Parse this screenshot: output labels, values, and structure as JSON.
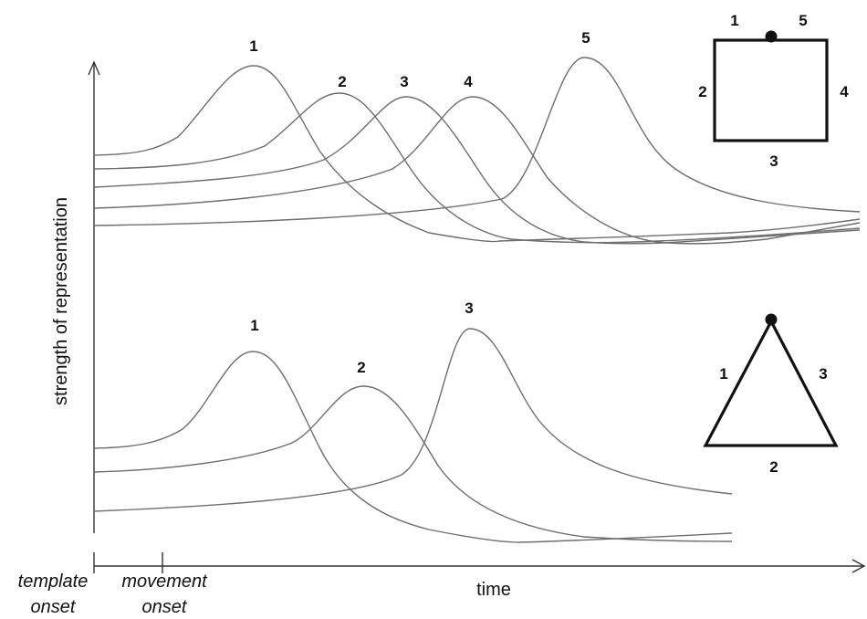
{
  "axes": {
    "y_label": "strength of representation",
    "x_label": "time",
    "template_onset": [
      "template",
      "onset"
    ],
    "movement_onset": [
      "movement",
      "onset"
    ]
  },
  "top_panel": {
    "peak_labels": [
      "1",
      "2",
      "3",
      "4",
      "5"
    ],
    "square_side_labels": [
      "1",
      "5",
      "2",
      "4",
      "3"
    ]
  },
  "bottom_panel": {
    "peak_labels": [
      "1",
      "2",
      "3"
    ],
    "triangle_side_labels": [
      "1",
      "3",
      "2"
    ]
  }
}
